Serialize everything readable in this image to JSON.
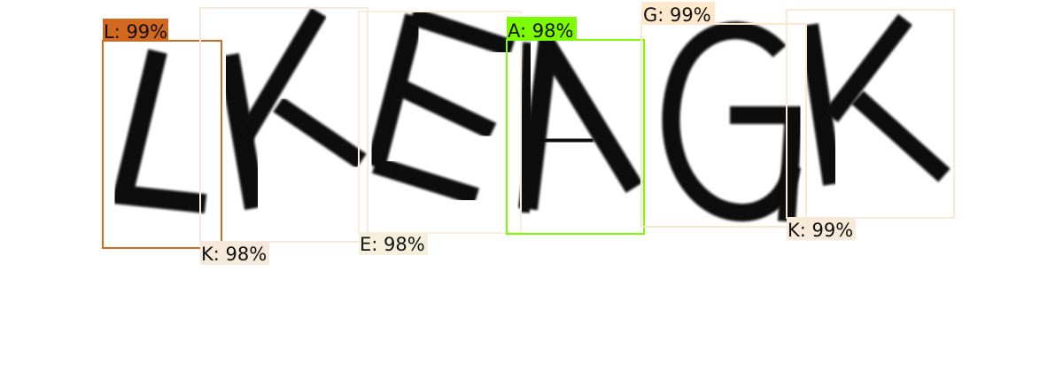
{
  "detections": [
    {
      "letter": "L",
      "label": "L: 99%",
      "color": "#d2691e"
    },
    {
      "letter": "K",
      "label": "K: 98%",
      "color": "#f5e9dc"
    },
    {
      "letter": "E",
      "label": "E: 98%",
      "color": "#f5efdc"
    },
    {
      "letter": "A",
      "label": "A: 98%",
      "color": "#7cfc00"
    },
    {
      "letter": "G",
      "label": "G: 99%",
      "color": "#fde8cc"
    },
    {
      "letter": "K",
      "label": "K: 99%",
      "color": "#f8ead8"
    }
  ]
}
